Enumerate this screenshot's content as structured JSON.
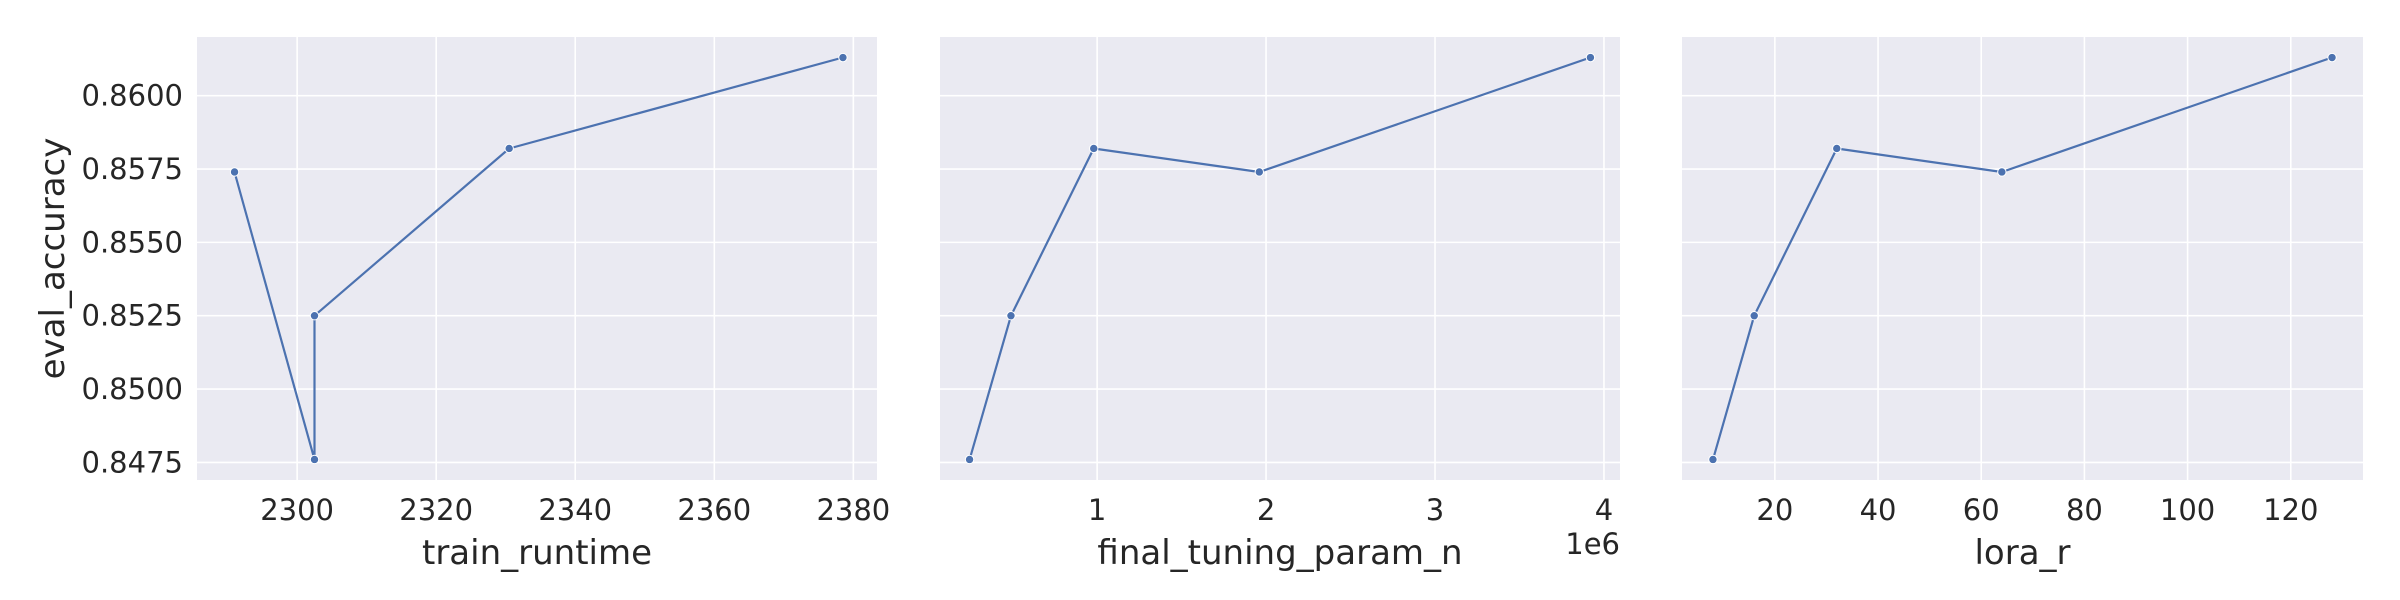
{
  "chart_data": [
    {
      "type": "line",
      "xlabel": "train_runtime",
      "ylabel": "eval_accuracy",
      "x": [
        2291,
        2302.5,
        2302.5,
        2330.5,
        2378.5
      ],
      "y": [
        0.8574,
        0.8476,
        0.8525,
        0.8582,
        0.8613
      ],
      "xlim": [
        2285.6,
        2383.4
      ],
      "ylim": [
        0.8469,
        0.862
      ],
      "xticks": [
        2300,
        2320,
        2340,
        2360,
        2380
      ],
      "xtick_labels": [
        "2300",
        "2320",
        "2340",
        "2360",
        "2380"
      ],
      "yticks": [
        0.8475,
        0.85,
        0.8525,
        0.855,
        0.8575,
        0.86
      ],
      "ytick_labels": [
        "0.8475",
        "0.8500",
        "0.8525",
        "0.8550",
        "0.8575",
        "0.8600"
      ],
      "x_offset_label": "",
      "grid": true,
      "color": "#4c72b0",
      "background": "#eaeaf2"
    },
    {
      "type": "line",
      "xlabel": "final_tuning_param_n",
      "ylabel": "",
      "x": [
        0.245,
        0.49,
        0.98,
        1.96,
        3.92
      ],
      "y": [
        0.8476,
        0.8525,
        0.8582,
        0.8574,
        0.8613
      ],
      "xlim": [
        0.07,
        4.095
      ],
      "ylim": [
        0.8469,
        0.862
      ],
      "xticks": [
        1,
        2,
        3,
        4
      ],
      "xtick_labels": [
        "1",
        "2",
        "3",
        "4"
      ],
      "yticks": [
        0.8475,
        0.85,
        0.8525,
        0.855,
        0.8575,
        0.86
      ],
      "ytick_labels": [
        "",
        "",
        "",
        "",
        "",
        ""
      ],
      "x_offset_label": "1e6",
      "grid": true,
      "color": "#4c72b0",
      "background": "#eaeaf2"
    },
    {
      "type": "line",
      "xlabel": "lora_r",
      "ylabel": "",
      "x": [
        8,
        16,
        32,
        64,
        128
      ],
      "y": [
        0.8476,
        0.8525,
        0.8582,
        0.8574,
        0.8613
      ],
      "xlim": [
        2,
        134
      ],
      "ylim": [
        0.8469,
        0.862
      ],
      "xticks": [
        20,
        40,
        60,
        80,
        100,
        120
      ],
      "xtick_labels": [
        "20",
        "40",
        "60",
        "80",
        "100",
        "120"
      ],
      "yticks": [
        0.8475,
        0.85,
        0.8525,
        0.855,
        0.8575,
        0.86
      ],
      "ytick_labels": [
        "",
        "",
        "",
        "",
        "",
        ""
      ],
      "x_offset_label": "",
      "grid": true,
      "color": "#4c72b0",
      "background": "#eaeaf2"
    }
  ]
}
